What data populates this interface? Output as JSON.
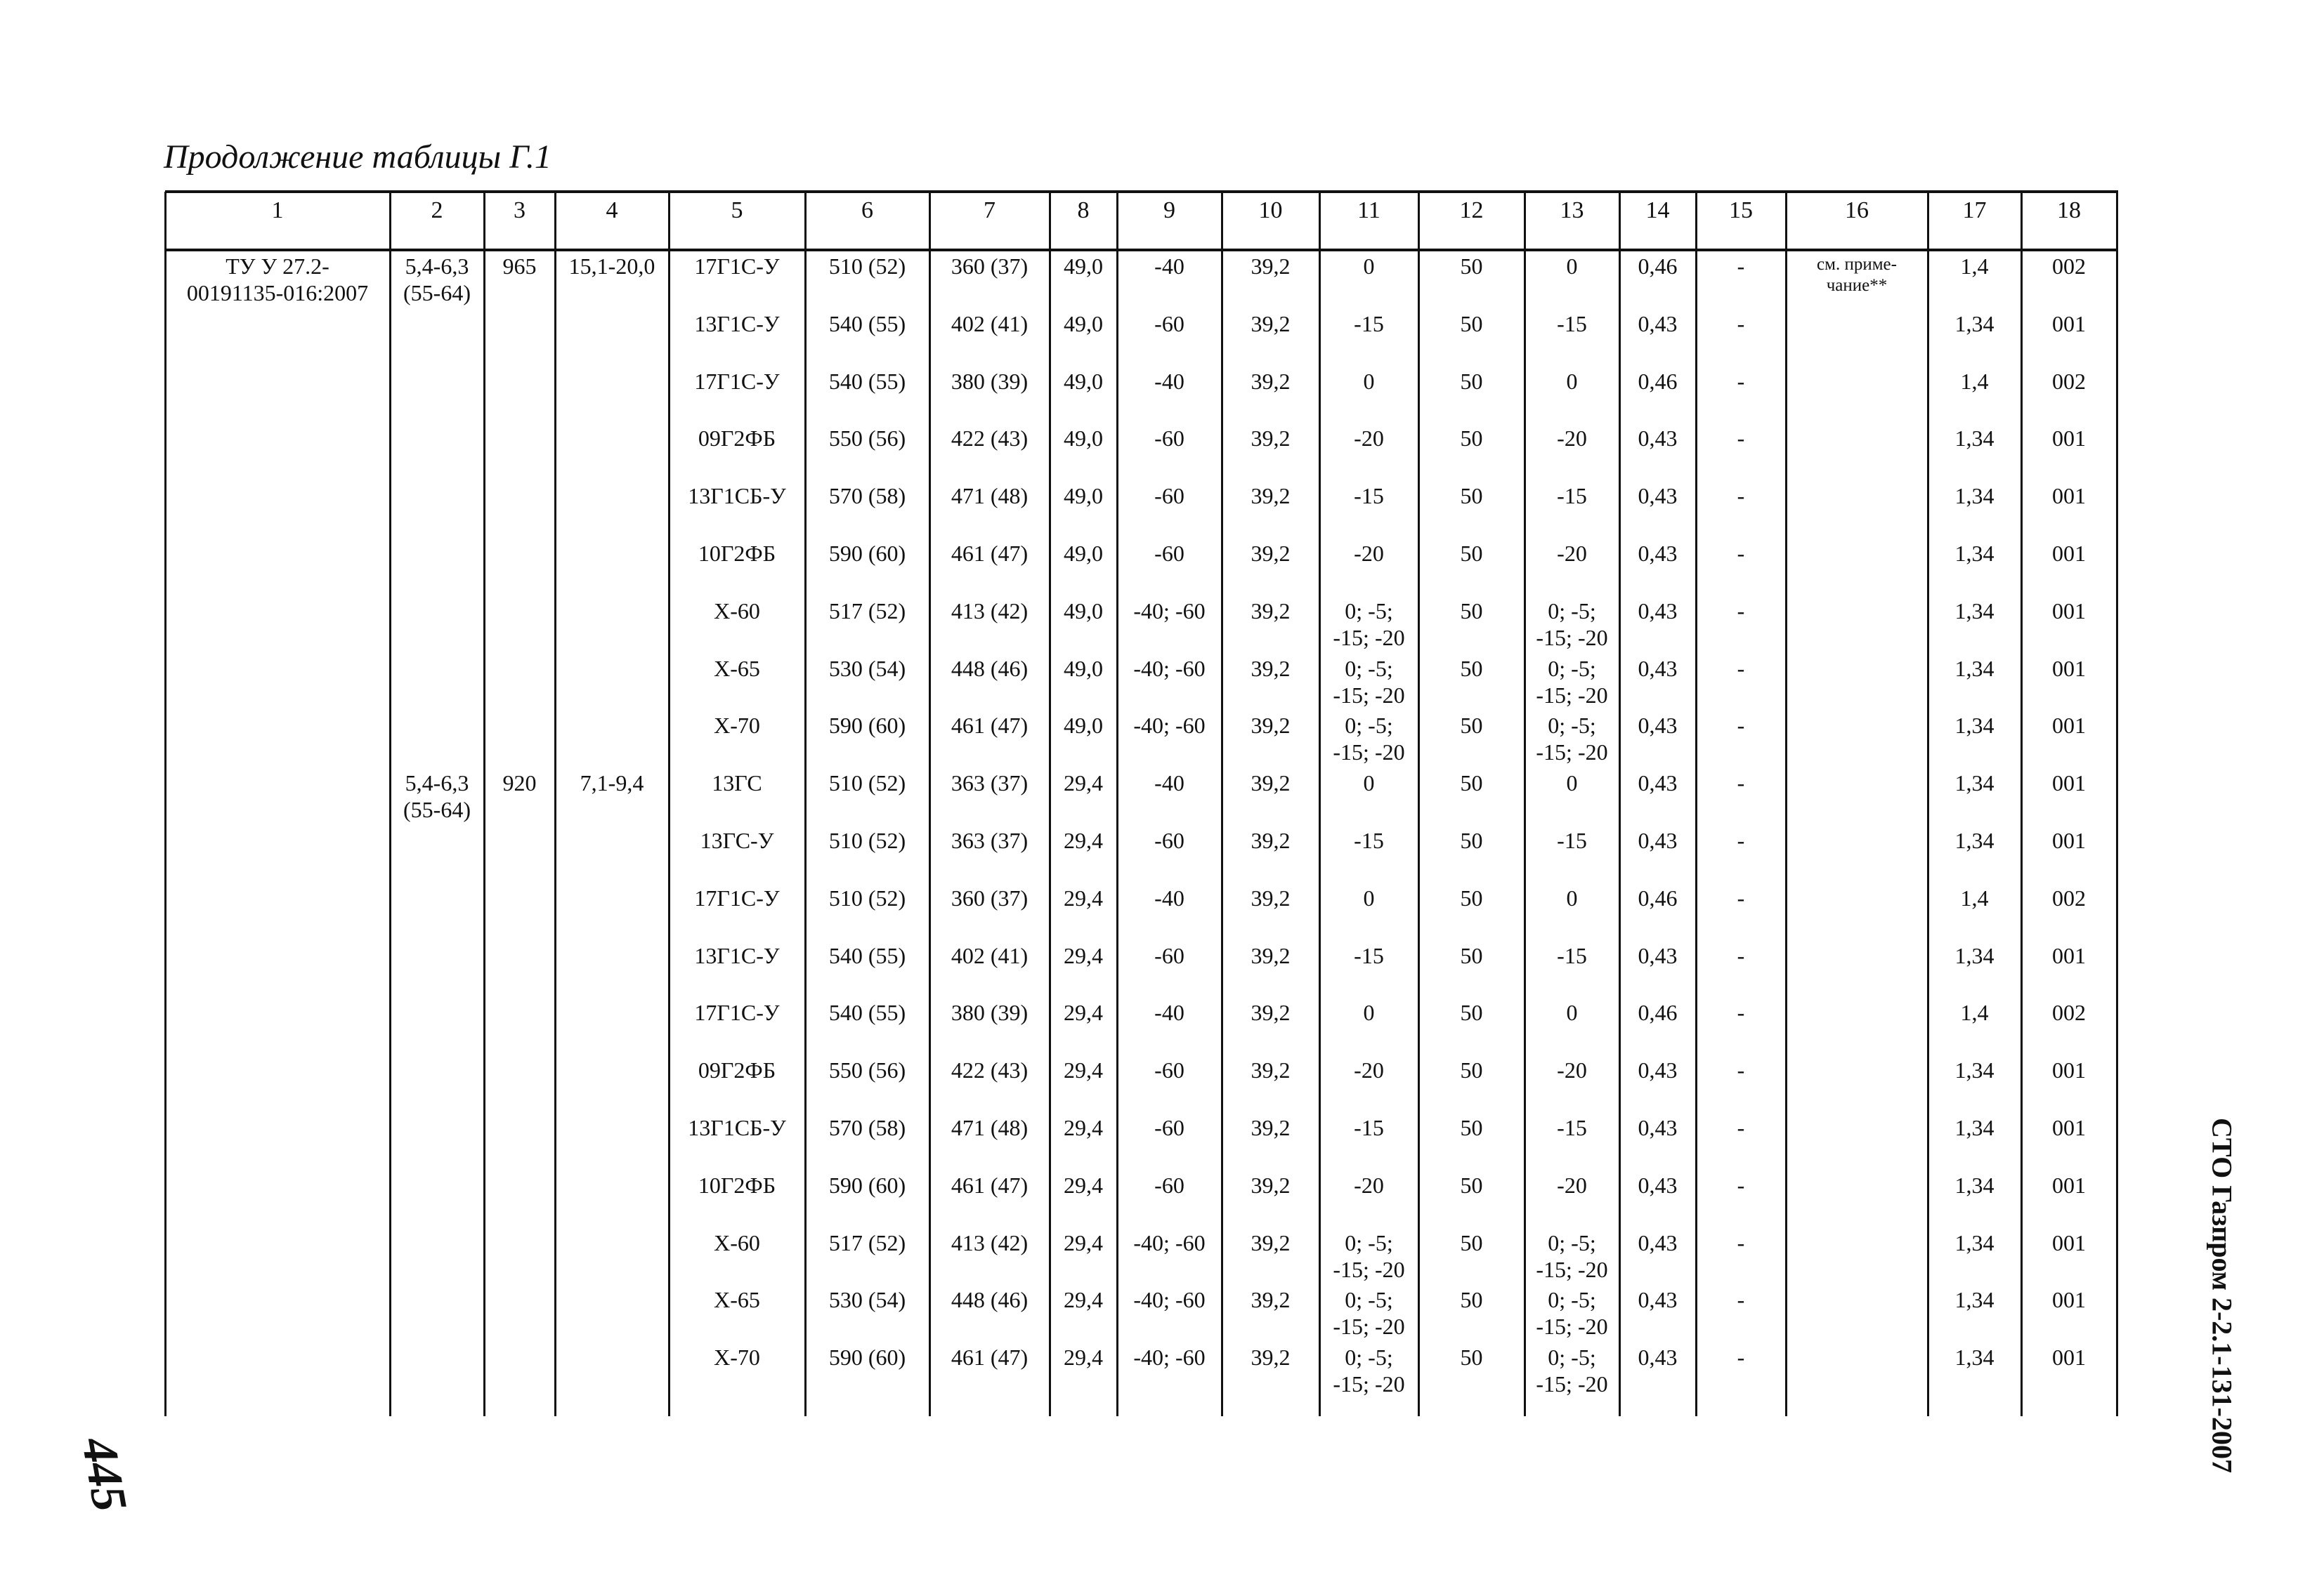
{
  "title": "Продолжение таблицы Г.1",
  "side_label": "СТО Газпром 2-2.1-131-2007",
  "page_number_handwritten": "445",
  "table": {
    "headers": [
      "1",
      "2",
      "3",
      "4",
      "5",
      "6",
      "7",
      "8",
      "9",
      "10",
      "11",
      "12",
      "13",
      "14",
      "15",
      "16",
      "17",
      "18"
    ],
    "rows": [
      [
        "ТУ У 27.2-\n00191135-016:2007",
        "5,4-6,3\n(55-64)",
        "965",
        "15,1-20,0",
        "17Г1С-У",
        "510 (52)",
        "360 (37)",
        "49,0",
        "-40",
        "39,2",
        "0",
        "50",
        "0",
        "0,46",
        "-",
        "см. приме-\nчание**",
        "1,4",
        "002"
      ],
      [
        "",
        "",
        "",
        "",
        "13Г1С-У",
        "540 (55)",
        "402 (41)",
        "49,0",
        "-60",
        "39,2",
        "-15",
        "50",
        "-15",
        "0,43",
        "-",
        "",
        "1,34",
        "001"
      ],
      [
        "",
        "",
        "",
        "",
        "17Г1С-У",
        "540 (55)",
        "380 (39)",
        "49,0",
        "-40",
        "39,2",
        "0",
        "50",
        "0",
        "0,46",
        "-",
        "",
        "1,4",
        "002"
      ],
      [
        "",
        "",
        "",
        "",
        "09Г2ФБ",
        "550 (56)",
        "422 (43)",
        "49,0",
        "-60",
        "39,2",
        "-20",
        "50",
        "-20",
        "0,43",
        "-",
        "",
        "1,34",
        "001"
      ],
      [
        "",
        "",
        "",
        "",
        "13Г1СБ-У",
        "570 (58)",
        "471 (48)",
        "49,0",
        "-60",
        "39,2",
        "-15",
        "50",
        "-15",
        "0,43",
        "-",
        "",
        "1,34",
        "001"
      ],
      [
        "",
        "",
        "",
        "",
        "10Г2ФБ",
        "590 (60)",
        "461 (47)",
        "49,0",
        "-60",
        "39,2",
        "-20",
        "50",
        "-20",
        "0,43",
        "-",
        "",
        "1,34",
        "001"
      ],
      [
        "",
        "",
        "",
        "",
        "X-60",
        "517 (52)",
        "413 (42)",
        "49,0",
        "-40; -60",
        "39,2",
        "0; -5;\n-15; -20",
        "50",
        "0; -5;\n-15; -20",
        "0,43",
        "-",
        "",
        "1,34",
        "001"
      ],
      [
        "",
        "",
        "",
        "",
        "X-65",
        "530 (54)",
        "448 (46)",
        "49,0",
        "-40; -60",
        "39,2",
        "0; -5;\n-15; -20",
        "50",
        "0; -5;\n-15; -20",
        "0,43",
        "-",
        "",
        "1,34",
        "001"
      ],
      [
        "",
        "",
        "",
        "",
        "X-70",
        "590 (60)",
        "461 (47)",
        "49,0",
        "-40; -60",
        "39,2",
        "0; -5;\n-15; -20",
        "50",
        "0; -5;\n-15; -20",
        "0,43",
        "-",
        "",
        "1,34",
        "001"
      ],
      [
        "",
        "5,4-6,3\n(55-64)",
        "920",
        "7,1-9,4",
        "13ГС",
        "510 (52)",
        "363 (37)",
        "29,4",
        "-40",
        "39,2",
        "0",
        "50",
        "0",
        "0,43",
        "-",
        "",
        "1,34",
        "001"
      ],
      [
        "",
        "",
        "",
        "",
        "13ГС-У",
        "510 (52)",
        "363 (37)",
        "29,4",
        "-60",
        "39,2",
        "-15",
        "50",
        "-15",
        "0,43",
        "-",
        "",
        "1,34",
        "001"
      ],
      [
        "",
        "",
        "",
        "",
        "17Г1С-У",
        "510 (52)",
        "360 (37)",
        "29,4",
        "-40",
        "39,2",
        "0",
        "50",
        "0",
        "0,46",
        "-",
        "",
        "1,4",
        "002"
      ],
      [
        "",
        "",
        "",
        "",
        "13Г1С-У",
        "540 (55)",
        "402 (41)",
        "29,4",
        "-60",
        "39,2",
        "-15",
        "50",
        "-15",
        "0,43",
        "-",
        "",
        "1,34",
        "001"
      ],
      [
        "",
        "",
        "",
        "",
        "17Г1С-У",
        "540 (55)",
        "380 (39)",
        "29,4",
        "-40",
        "39,2",
        "0",
        "50",
        "0",
        "0,46",
        "-",
        "",
        "1,4",
        "002"
      ],
      [
        "",
        "",
        "",
        "",
        "09Г2ФБ",
        "550 (56)",
        "422 (43)",
        "29,4",
        "-60",
        "39,2",
        "-20",
        "50",
        "-20",
        "0,43",
        "-",
        "",
        "1,34",
        "001"
      ],
      [
        "",
        "",
        "",
        "",
        "13Г1СБ-У",
        "570 (58)",
        "471 (48)",
        "29,4",
        "-60",
        "39,2",
        "-15",
        "50",
        "-15",
        "0,43",
        "-",
        "",
        "1,34",
        "001"
      ],
      [
        "",
        "",
        "",
        "",
        "10Г2ФБ",
        "590 (60)",
        "461 (47)",
        "29,4",
        "-60",
        "39,2",
        "-20",
        "50",
        "-20",
        "0,43",
        "-",
        "",
        "1,34",
        "001"
      ],
      [
        "",
        "",
        "",
        "",
        "X-60",
        "517 (52)",
        "413 (42)",
        "29,4",
        "-40; -60",
        "39,2",
        "0; -5;\n-15; -20",
        "50",
        "0; -5;\n-15; -20",
        "0,43",
        "-",
        "",
        "1,34",
        "001"
      ],
      [
        "",
        "",
        "",
        "",
        "X-65",
        "530 (54)",
        "448 (46)",
        "29,4",
        "-40; -60",
        "39,2",
        "0; -5;\n-15; -20",
        "50",
        "0; -5;\n-15; -20",
        "0,43",
        "-",
        "",
        "1,34",
        "001"
      ],
      [
        "",
        "",
        "",
        "",
        "X-70",
        "590 (60)",
        "461 (47)",
        "29,4",
        "-40; -60",
        "39,2",
        "0; -5;\n-15; -20",
        "50",
        "0; -5;\n-15; -20",
        "0,43",
        "-",
        "",
        "1,34",
        "001"
      ]
    ]
  }
}
